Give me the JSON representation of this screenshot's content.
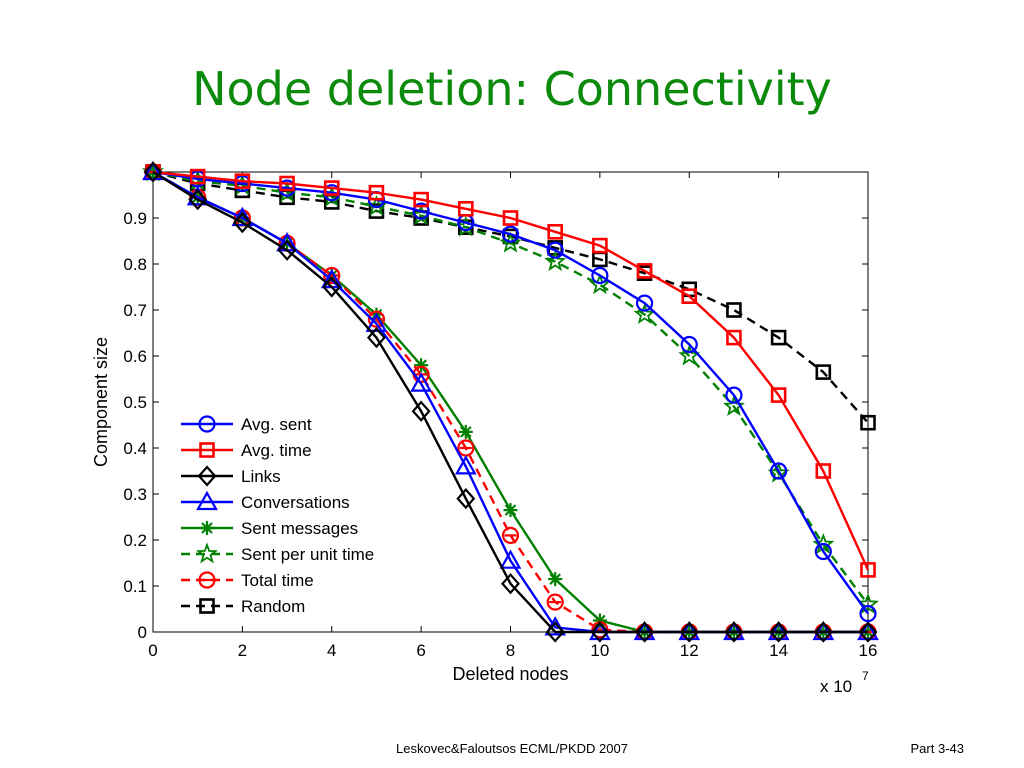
{
  "slide": {
    "title": "Node deletion: Connectivity",
    "footer_center": "Leskovec&Faloutsos ECML/PKDD 2007",
    "footer_right": "Part 3-43"
  },
  "chart_data": {
    "type": "line",
    "xlabel": "Deleted nodes",
    "ylabel": "Component size",
    "x_multiplier_base": "x 10",
    "x_multiplier_exp": "7",
    "xlim": [
      0,
      16
    ],
    "ylim": [
      0,
      1
    ],
    "x_ticks": [
      0,
      2,
      4,
      6,
      8,
      10,
      12,
      14,
      16
    ],
    "y_ticks": [
      0,
      0.1,
      0.2,
      0.3,
      0.4,
      0.5,
      0.6,
      0.7,
      0.8,
      0.9
    ],
    "y_tick_labels": [
      "0",
      "0.1",
      "0.2",
      "0.3",
      "0.4",
      "0.5",
      "0.6",
      "0.7",
      "0.8",
      "0.9"
    ],
    "grid": false,
    "legend_position": "bottom-left",
    "x": [
      0,
      1,
      2,
      3,
      4,
      5,
      6,
      7,
      8,
      9,
      10,
      11,
      12,
      13,
      14,
      15,
      16
    ],
    "series": [
      {
        "name": "Avg. sent",
        "color": "#0000ff",
        "dash": "solid",
        "marker": "circle",
        "values": [
          1.0,
          0.985,
          0.975,
          0.965,
          0.955,
          0.94,
          0.915,
          0.89,
          0.865,
          0.83,
          0.775,
          0.715,
          0.625,
          0.515,
          0.35,
          0.175,
          0.04
        ]
      },
      {
        "name": "Avg. time",
        "color": "#ff0000",
        "dash": "solid",
        "marker": "square",
        "values": [
          1.0,
          0.99,
          0.98,
          0.975,
          0.965,
          0.955,
          0.94,
          0.92,
          0.9,
          0.87,
          0.84,
          0.785,
          0.73,
          0.64,
          0.515,
          0.35,
          0.135
        ]
      },
      {
        "name": "Links",
        "color": "#000000",
        "dash": "solid",
        "marker": "diamond",
        "values": [
          1.0,
          0.94,
          0.89,
          0.83,
          0.75,
          0.64,
          0.48,
          0.29,
          0.105,
          0.0,
          0.0,
          0.0,
          0.0,
          0.0,
          0.0,
          0.0,
          0.0
        ]
      },
      {
        "name": "Conversations",
        "color": "#0000ff",
        "dash": "solid",
        "marker": "triangle",
        "values": [
          1.0,
          0.945,
          0.9,
          0.845,
          0.765,
          0.67,
          0.54,
          0.36,
          0.155,
          0.01,
          0.0,
          0.0,
          0.0,
          0.0,
          0.0,
          0.0,
          0.0
        ]
      },
      {
        "name": "Sent messages",
        "color": "#008000",
        "dash": "solid",
        "marker": "asterisk",
        "values": [
          1.0,
          0.945,
          0.9,
          0.845,
          0.775,
          0.69,
          0.58,
          0.435,
          0.265,
          0.115,
          0.025,
          0.0,
          0.0,
          0.0,
          0.0,
          0.0,
          0.0
        ]
      },
      {
        "name": "Sent per unit time",
        "color": "#008000",
        "dash": "dashed",
        "marker": "star",
        "values": [
          1.0,
          0.98,
          0.97,
          0.955,
          0.945,
          0.925,
          0.905,
          0.88,
          0.845,
          0.805,
          0.755,
          0.69,
          0.6,
          0.49,
          0.345,
          0.19,
          0.06
        ]
      },
      {
        "name": "Total time",
        "color": "#ff0000",
        "dash": "dashed",
        "marker": "circle-minus",
        "values": [
          1.0,
          0.945,
          0.9,
          0.845,
          0.775,
          0.68,
          0.56,
          0.4,
          0.21,
          0.065,
          0.005,
          0.0,
          0.0,
          0.0,
          0.0,
          0.0,
          0.0
        ]
      },
      {
        "name": "Random",
        "color": "#000000",
        "dash": "dashed",
        "marker": "square",
        "values": [
          1.0,
          0.975,
          0.96,
          0.945,
          0.935,
          0.915,
          0.9,
          0.88,
          0.86,
          0.835,
          0.81,
          0.78,
          0.745,
          0.7,
          0.64,
          0.565,
          0.455
        ]
      }
    ]
  }
}
